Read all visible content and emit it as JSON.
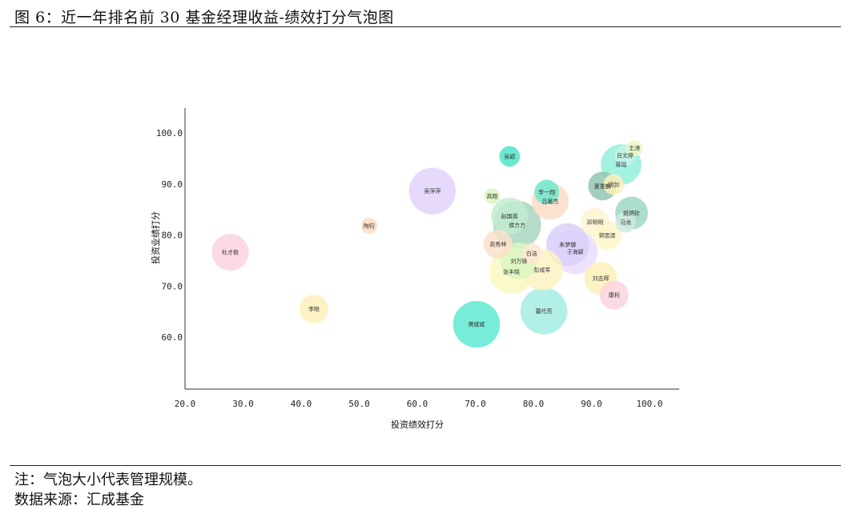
{
  "figure": {
    "title": "图 6：近一年排名前 30 基金经理收益-绩效打分气泡图",
    "note": "注：气泡大小代表管理规模。",
    "source": "数据来源：汇成基金"
  },
  "chart_data": {
    "type": "scatter",
    "title": "",
    "xlabel": "投资绩效打分",
    "ylabel": "投资业绩打分",
    "xlim": [
      20,
      100
    ],
    "ylim": [
      55,
      105
    ],
    "xticks": [
      "20.0",
      "30.0",
      "40.0",
      "50.0",
      "60.0",
      "70.0",
      "80.0",
      "90.0",
      "100.0"
    ],
    "yticks": [
      "60.0",
      "70.0",
      "80.0",
      "90.0",
      "100.0"
    ],
    "grid": false,
    "size_encoding": "管理规模",
    "points": [
      {
        "name": "杜才稳",
        "x": 27.8,
        "y": 76.6,
        "size": 1.0,
        "color": "#fbd3de"
      },
      {
        "name": "李晓",
        "x": 42.2,
        "y": 65.5,
        "size": 0.78,
        "color": "#fdf0b8"
      },
      {
        "name": "陶钧",
        "x": 51.7,
        "y": 81.8,
        "size": 0.44,
        "color": "#fbdcc4"
      },
      {
        "name": "吴萍萍",
        "x": 62.6,
        "y": 88.6,
        "size": 1.27,
        "color": "#e2d2fb"
      },
      {
        "name": "黄斌斌",
        "x": 70.2,
        "y": 62.5,
        "size": 1.27,
        "color": "#5ee9d2"
      },
      {
        "name": "高翔",
        "x": 72.9,
        "y": 87.6,
        "size": 0.42,
        "color": "#d9f7c0"
      },
      {
        "name": "吴颖",
        "x": 75.9,
        "y": 95.4,
        "size": 0.56,
        "color": "#4fe6c8"
      },
      {
        "name": "高秀林",
        "x": 73.9,
        "y": 78.2,
        "size": 0.78,
        "color": "#fbe1c9"
      },
      {
        "name": "赵国英",
        "x": 75.9,
        "y": 83.7,
        "size": 1.0,
        "color": "#c2ecd0"
      },
      {
        "name": "张丰晓",
        "x": 76.2,
        "y": 72.8,
        "size": 1.21,
        "color": "#f9f8c2"
      },
      {
        "name": "刘万锋",
        "x": 77.5,
        "y": 74.9,
        "size": 1.0,
        "color": "#d9f7c0"
      },
      {
        "name": "侯方方",
        "x": 77.2,
        "y": 82.0,
        "size": 1.3,
        "color": "#a9d6c0"
      },
      {
        "name": "白洁",
        "x": 79.7,
        "y": 76.4,
        "size": 0.56,
        "color": "#fce8d4"
      },
      {
        "name": "彭成军",
        "x": 81.5,
        "y": 73.2,
        "size": 1.12,
        "color": "#fdf2c2"
      },
      {
        "name": "蕾代亮",
        "x": 81.8,
        "y": 65.1,
        "size": 1.27,
        "color": "#a5ede3"
      },
      {
        "name": "李一翔",
        "x": 82.3,
        "y": 88.4,
        "size": 0.67,
        "color": "#6de6cd"
      },
      {
        "name": "吕著杰",
        "x": 82.9,
        "y": 86.6,
        "size": 1.0,
        "color": "#fcdcc6"
      },
      {
        "name": "朱梦娜",
        "x": 85.9,
        "y": 78.1,
        "size": 1.16,
        "color": "#d9cff8"
      },
      {
        "name": "于海颖",
        "x": 87.2,
        "y": 76.7,
        "size": 1.21,
        "color": "#eadcfd"
      },
      {
        "name": "邓明明",
        "x": 90.6,
        "y": 82.5,
        "size": 0.78,
        "color": "#fdf6d2"
      },
      {
        "name": "郭思涯",
        "x": 92.7,
        "y": 79.9,
        "size": 0.78,
        "color": "#fdf6cb"
      },
      {
        "name": "刘志辉",
        "x": 91.6,
        "y": 71.5,
        "size": 0.89,
        "color": "#fdf0b8"
      },
      {
        "name": "康利",
        "x": 93.9,
        "y": 68.2,
        "size": 0.78,
        "color": "#fbd3de"
      },
      {
        "name": "夏重麟",
        "x": 91.9,
        "y": 89.6,
        "size": 0.78,
        "color": "#92c6b2"
      },
      {
        "name": "胡剑",
        "x": 93.8,
        "y": 89.9,
        "size": 0.56,
        "color": "#fdf0b8"
      },
      {
        "name": "吕文婷",
        "x": 95.8,
        "y": 95.6,
        "size": 0.56,
        "color": "#c7f3e8"
      },
      {
        "name": "蒋瑶",
        "x": 95.1,
        "y": 93.8,
        "size": 1.1,
        "color": "#93efdc"
      },
      {
        "name": "王涛",
        "x": 97.4,
        "y": 97.0,
        "size": 0.44,
        "color": "#e9f8c4"
      },
      {
        "name": "姚炳钦",
        "x": 96.9,
        "y": 84.3,
        "size": 0.89,
        "color": "#9fd8c2"
      },
      {
        "name": "马龙",
        "x": 95.9,
        "y": 82.5,
        "size": 0.56,
        "color": "#cfe9e2"
      }
    ]
  }
}
